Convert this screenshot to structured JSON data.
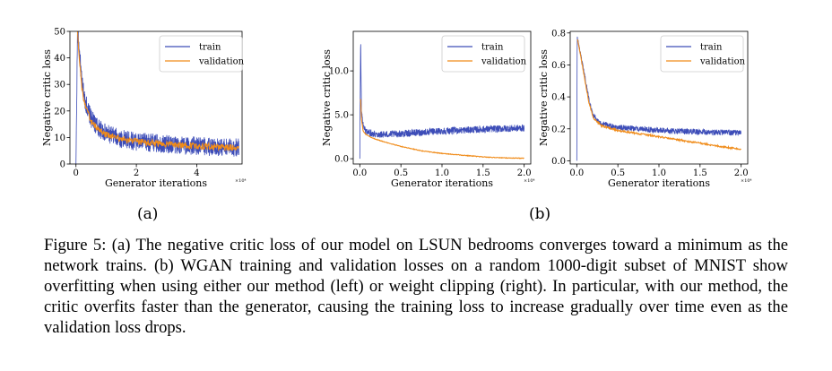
{
  "colors": {
    "train": "#3d4db8",
    "validation": "#f08c1a"
  },
  "subcaptions": {
    "a": "(a)",
    "b": "(b)"
  },
  "caption": "Figure 5: (a) The negative critic loss of our model on LSUN bedrooms converges toward a minimum as the network trains. (b) WGAN training and validation losses on a random 1000-digit subset of MNIST show overfitting when using either our method (left) or weight clipping (right). In particular, with our method, the critic overfits faster than the generator, causing the training loss to increase gradually over time even as the validation loss drops.",
  "chart_data": [
    {
      "type": "line",
      "xlabel": "Generator iterations",
      "ylabel": "Negative critic loss",
      "x_multiplier": "×10⁴",
      "xlim": [
        -0.2,
        5.5
      ],
      "ylim": [
        0,
        50
      ],
      "xticks": [
        0,
        2,
        4
      ],
      "yticks": [
        0,
        10,
        20,
        30,
        40,
        50
      ],
      "legend_position": "top-right",
      "series": [
        {
          "name": "train",
          "x": [
            0,
            0.05,
            0.1,
            0.2,
            0.3,
            0.5,
            0.75,
            1.0,
            1.5,
            2.0,
            2.5,
            3.0,
            3.5,
            4.0,
            4.5,
            5.0,
            5.4
          ],
          "values": [
            0,
            50,
            44,
            30,
            24,
            17,
            13.5,
            11.5,
            9.5,
            8.5,
            8,
            7.5,
            7,
            6.8,
            6.5,
            6.3,
            6.2
          ],
          "noise": 3.5
        },
        {
          "name": "validation",
          "x": [
            0.05,
            0.1,
            0.2,
            0.3,
            0.5,
            0.75,
            1.0,
            1.5,
            2.0,
            2.5,
            3.0,
            3.5,
            4.0,
            4.5,
            5.0,
            5.4
          ],
          "values": [
            50,
            42,
            28,
            22,
            16,
            13,
            11,
            9.5,
            8.5,
            8,
            7.5,
            7,
            6.8,
            6.5,
            6.3,
            6.2
          ],
          "noise": 1.2
        }
      ]
    },
    {
      "type": "line",
      "xlabel": "Generator iterations",
      "ylabel": "Negative critic loss",
      "x_multiplier": "×10⁴",
      "xlim": [
        -0.08,
        2.08
      ],
      "ylim": [
        -0.6,
        14.5
      ],
      "xticks": [
        0.0,
        0.5,
        1.0,
        1.5,
        2.0
      ],
      "yticks": [
        0,
        5,
        10
      ],
      "legend_position": "top-right",
      "series": [
        {
          "name": "train",
          "x": [
            0,
            0.01,
            0.02,
            0.04,
            0.07,
            0.1,
            0.2,
            0.3,
            0.5,
            0.75,
            1.0,
            1.5,
            2.0
          ],
          "values": [
            0,
            13.8,
            5.5,
            3.8,
            3.2,
            3.0,
            2.8,
            2.75,
            2.85,
            3.0,
            3.15,
            3.35,
            3.5
          ],
          "noise": 0.4
        },
        {
          "name": "validation",
          "x": [
            0.01,
            0.02,
            0.04,
            0.07,
            0.1,
            0.2,
            0.3,
            0.5,
            0.75,
            1.0,
            1.25,
            1.5,
            1.75,
            2.0
          ],
          "values": [
            6.8,
            4.5,
            3.2,
            2.8,
            2.6,
            2.2,
            1.9,
            1.4,
            0.9,
            0.6,
            0.4,
            0.2,
            0.1,
            0.05
          ],
          "noise": 0.04
        }
      ]
    },
    {
      "type": "line",
      "xlabel": "Generator iterations",
      "ylabel": "Negative critic loss",
      "x_multiplier": "×10⁴",
      "xlim": [
        -0.08,
        2.08
      ],
      "ylim": [
        -0.02,
        0.81
      ],
      "xticks": [
        0.0,
        0.5,
        1.0,
        1.5,
        2.0
      ],
      "yticks": [
        0.0,
        0.2,
        0.4,
        0.6,
        0.8
      ],
      "legend_position": "top-right",
      "series": [
        {
          "name": "train",
          "x": [
            0,
            0.005,
            0.02,
            0.05,
            0.1,
            0.15,
            0.2,
            0.3,
            0.5,
            0.75,
            1.0,
            1.5,
            2.0
          ],
          "values": [
            0,
            0.77,
            0.74,
            0.65,
            0.52,
            0.38,
            0.28,
            0.23,
            0.21,
            0.2,
            0.19,
            0.18,
            0.175
          ],
          "noise": 0.018
        },
        {
          "name": "validation",
          "x": [
            0.01,
            0.05,
            0.1,
            0.15,
            0.2,
            0.3,
            0.5,
            0.75,
            1.0,
            1.25,
            1.5,
            1.75,
            2.0
          ],
          "values": [
            0.76,
            0.65,
            0.5,
            0.36,
            0.27,
            0.22,
            0.19,
            0.17,
            0.15,
            0.13,
            0.11,
            0.09,
            0.07
          ],
          "noise": 0.006
        }
      ]
    }
  ]
}
